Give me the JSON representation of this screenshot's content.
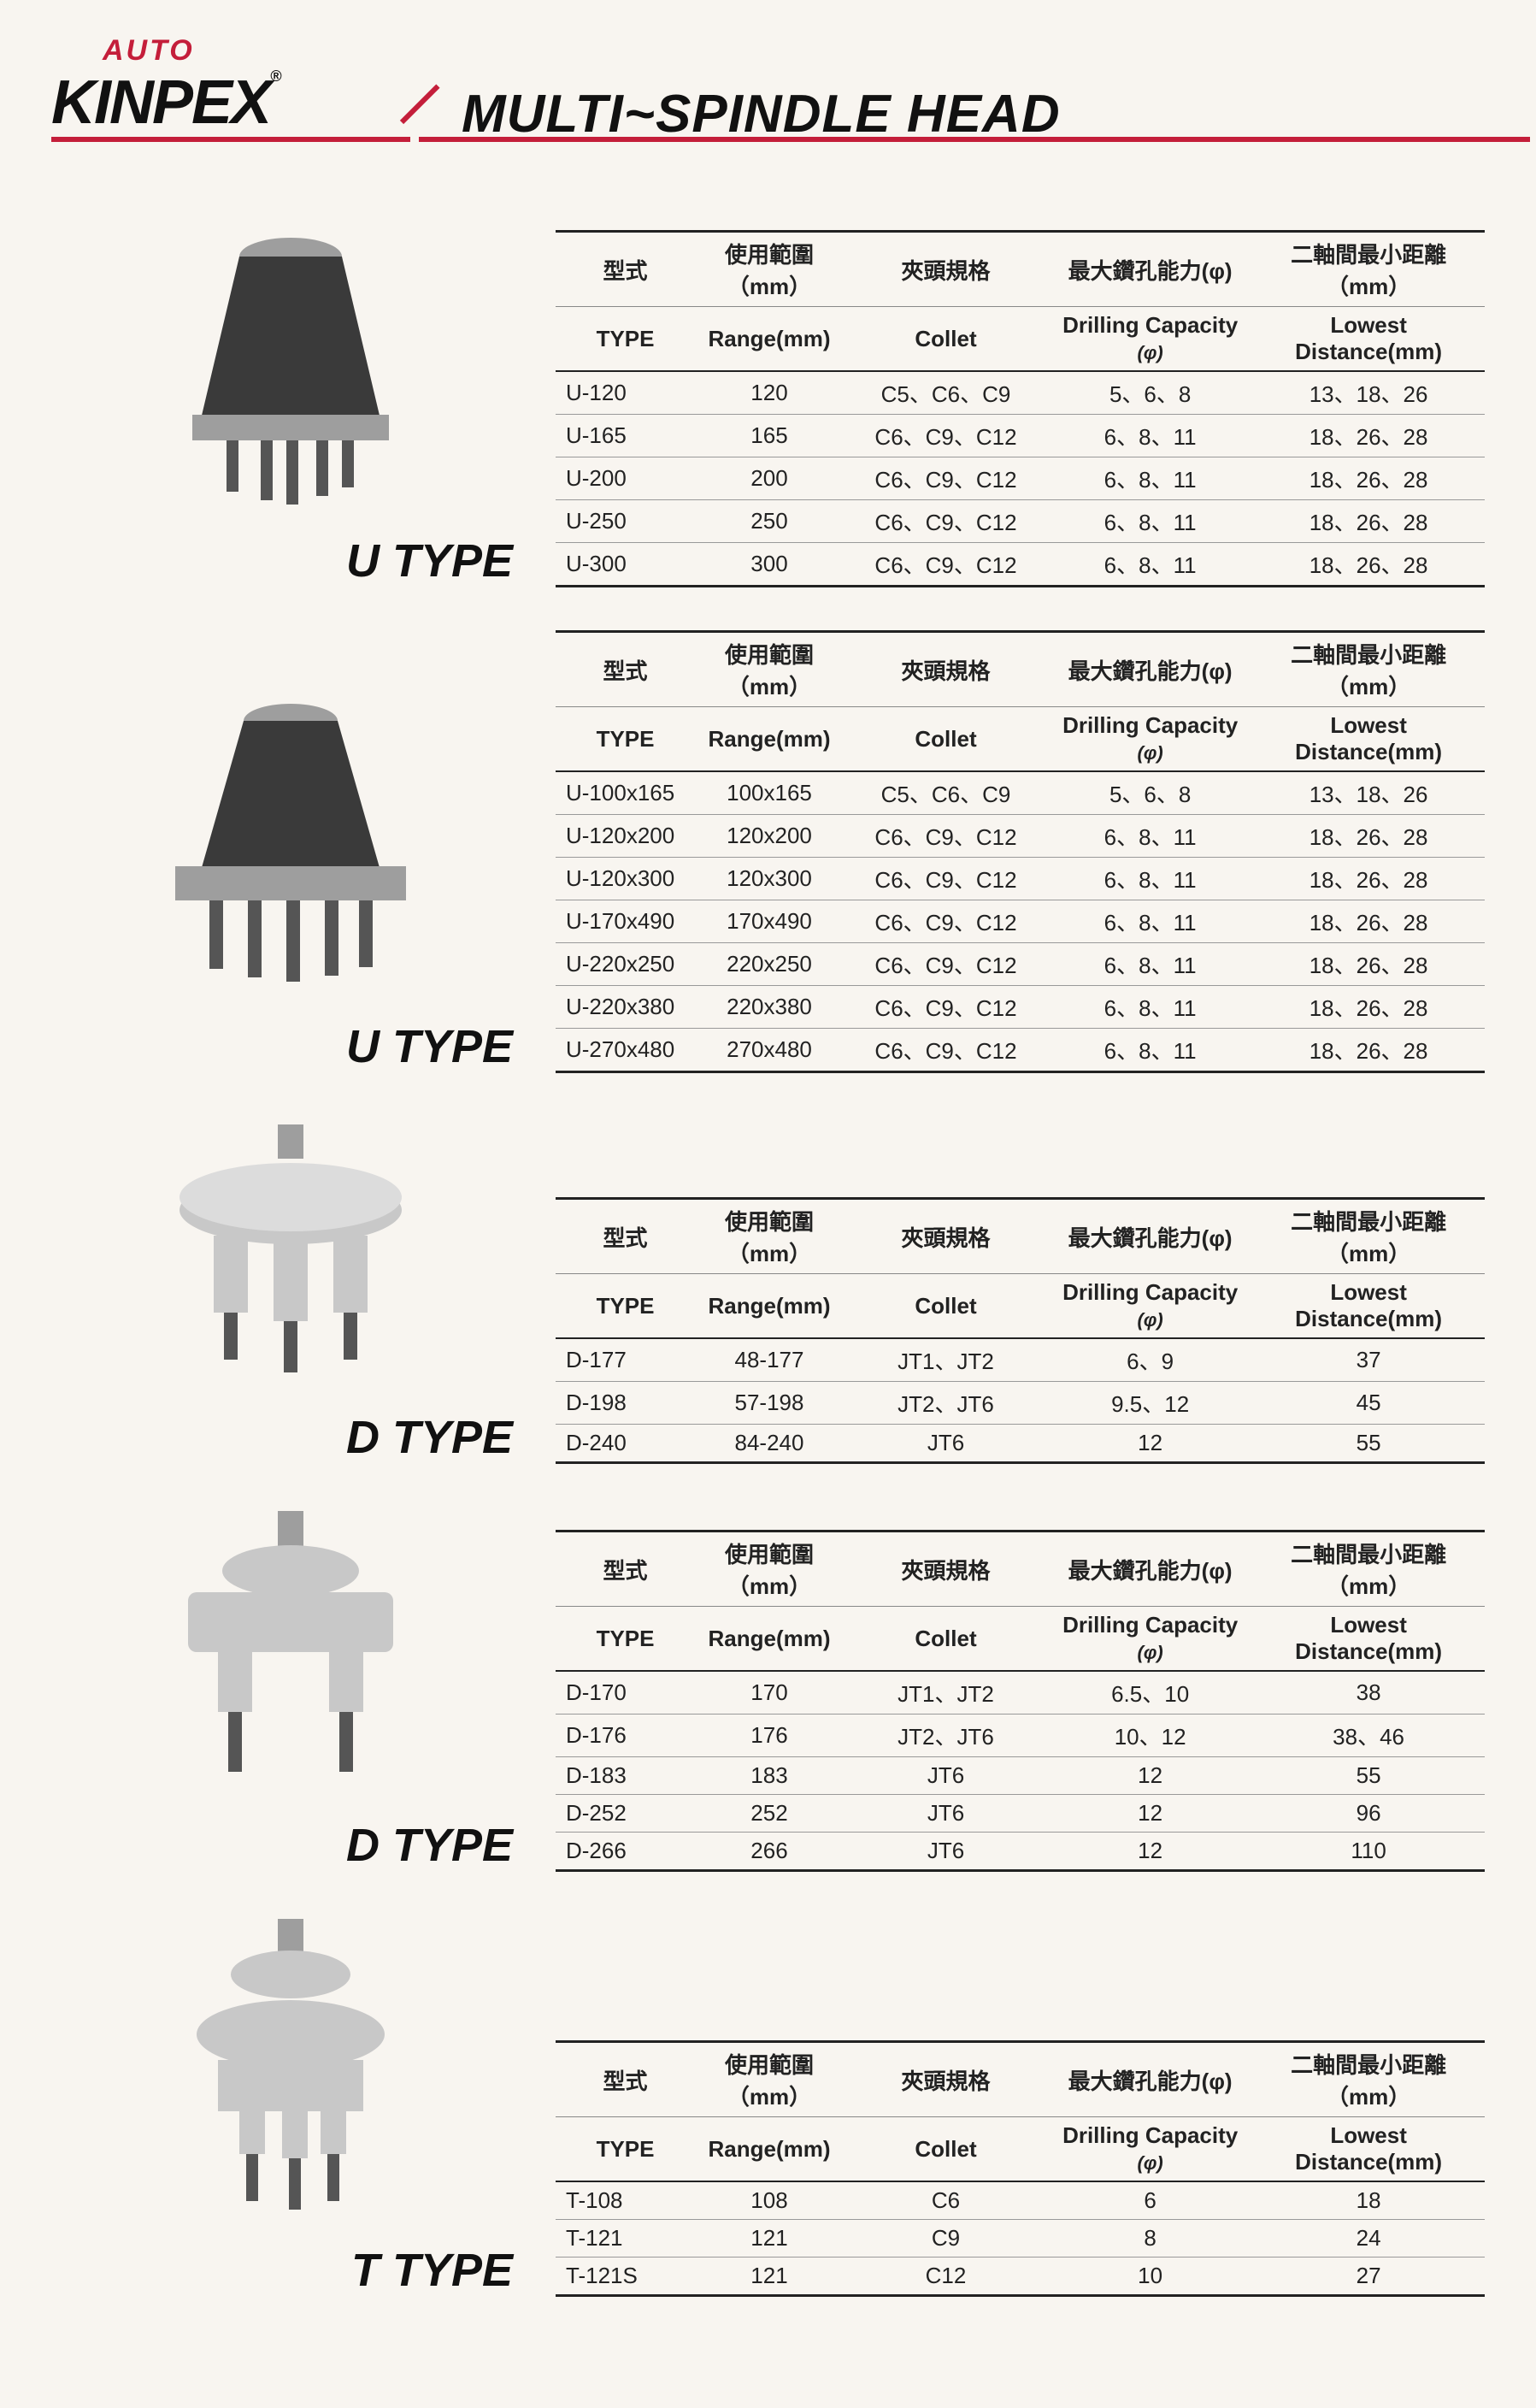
{
  "brand": {
    "auto": "AUTO",
    "name": "KINPEX",
    "reg": "®",
    "title": "MULTI~SPINDLE HEAD"
  },
  "headers_zh": [
    "型式",
    "使用範圍（mm）",
    "夾頭規格",
    "最大鑽孔能力(φ)",
    "二軸間最小距離（mm）"
  ],
  "headers_en": [
    "TYPE",
    "Range(mm)",
    "Collet",
    "Drilling Capacity (φ)",
    "Lowest Distance(mm)"
  ],
  "sections": [
    {
      "label": "U TYPE",
      "rows": [
        [
          "U-120",
          "120",
          "C5、C6、C9",
          "5、6、8",
          "13、18、26"
        ],
        [
          "U-165",
          "165",
          "C6、C9、C12",
          "6、8、11",
          "18、26、28"
        ],
        [
          "U-200",
          "200",
          "C6、C9、C12",
          "6、8、11",
          "18、26、28"
        ],
        [
          "U-250",
          "250",
          "C6、C9、C12",
          "6、8、11",
          "18、26、28"
        ],
        [
          "U-300",
          "300",
          "C6、C9、C12",
          "6、8、11",
          "18、26、28"
        ]
      ]
    },
    {
      "label": "U TYPE",
      "rows": [
        [
          "U-100x165",
          "100x165",
          "C5、C6、C9",
          "5、6、8",
          "13、18、26"
        ],
        [
          "U-120x200",
          "120x200",
          "C6、C9、C12",
          "6、8、11",
          "18、26、28"
        ],
        [
          "U-120x300",
          "120x300",
          "C6、C9、C12",
          "6、8、11",
          "18、26、28"
        ],
        [
          "U-170x490",
          "170x490",
          "C6、C9、C12",
          "6、8、11",
          "18、26、28"
        ],
        [
          "U-220x250",
          "220x250",
          "C6、C9、C12",
          "6、8、11",
          "18、26、28"
        ],
        [
          "U-220x380",
          "220x380",
          "C6、C9、C12",
          "6、8、11",
          "18、26、28"
        ],
        [
          "U-270x480",
          "270x480",
          "C6、C9、C12",
          "6、8、11",
          "18、26、28"
        ]
      ]
    },
    {
      "label": "D TYPE",
      "rows": [
        [
          "D-177",
          "48-177",
          "JT1、JT2",
          "6、9",
          "37"
        ],
        [
          "D-198",
          "57-198",
          "JT2、JT6",
          "9.5、12",
          "45"
        ],
        [
          "D-240",
          "84-240",
          "JT6",
          "12",
          "55"
        ]
      ]
    },
    {
      "label": "D TYPE",
      "rows": [
        [
          "D-170",
          "170",
          "JT1、JT2",
          "6.5、10",
          "38"
        ],
        [
          "D-176",
          "176",
          "JT2、JT6",
          "10、12",
          "38、46"
        ],
        [
          "D-183",
          "183",
          "JT6",
          "12",
          "55"
        ],
        [
          "D-252",
          "252",
          "JT6",
          "12",
          "96"
        ],
        [
          "D-266",
          "266",
          "JT6",
          "12",
          "110"
        ]
      ]
    },
    {
      "label": "T TYPE",
      "rows": [
        [
          "T-108",
          "108",
          "C6",
          "6",
          "18"
        ],
        [
          "T-121",
          "121",
          "C9",
          "8",
          "24"
        ],
        [
          "T-121S",
          "121",
          "C12",
          "10",
          "27"
        ]
      ]
    }
  ],
  "styling": {
    "accent_color": "#c41e3a",
    "text_color": "#111111",
    "bg_color": "#f8f5f0",
    "border_color": "#222222",
    "row_border_color": "#999999",
    "title_fontsize": 62,
    "logo_fontsize": 72,
    "type_label_fontsize": 54,
    "table_fontsize": 26
  },
  "product_colors": {
    "dark_body": "#3a3a3a",
    "light_body": "#c8c8c8",
    "metal": "#9e9e9e",
    "shadow": "#555555"
  }
}
